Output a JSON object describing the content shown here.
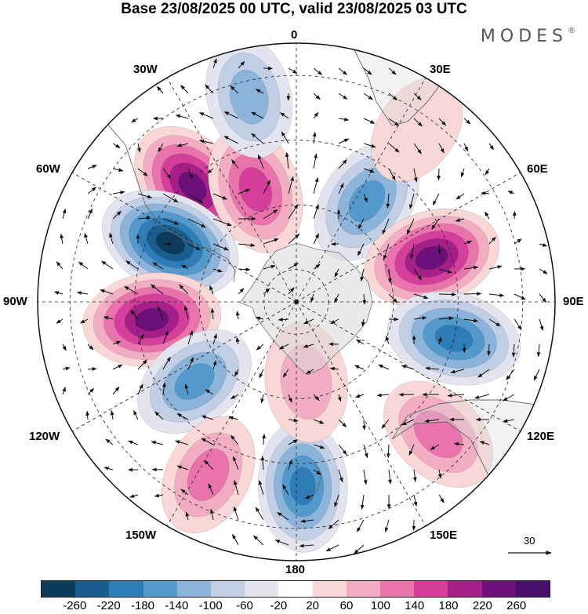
{
  "title": "Base 23/08/2025 00 UTC, valid 23/08/2025 03 UTC",
  "brand": "MODES",
  "brand_mark": "®",
  "longitude_labels": {
    "top": "0",
    "bottom": "180",
    "left": "90W",
    "right": "90E",
    "upper_left_30": "30W",
    "upper_right_30": "30E",
    "upper_left_60": "60W",
    "upper_right_60": "60E",
    "lower_left_120": "120W",
    "lower_right_120": "120E",
    "lower_left_150": "150W",
    "lower_right_150": "150E"
  },
  "vector_scale": {
    "label": "30"
  },
  "colorbar": {
    "ticks": [
      "-260",
      "-220",
      "-180",
      "-140",
      "-100",
      "-60",
      "-20",
      "20",
      "60",
      "100",
      "140",
      "180",
      "220",
      "260"
    ],
    "colors": [
      "#0e3a5c",
      "#1a5e8f",
      "#2f7db8",
      "#5499cc",
      "#8cb4db",
      "#c0cfe6",
      "#e4e4f1",
      "#ffffff",
      "#fad7d7",
      "#f3adc3",
      "#e973ac",
      "#d33f9a",
      "#a51f88",
      "#6e1079",
      "#4a0e6b"
    ]
  },
  "anomaly_features": [
    {
      "name": "positive-60W-40S",
      "lon": -42,
      "lat": -42,
      "value": 230
    },
    {
      "name": "positive-25W-55S",
      "lon": -20,
      "lat": -53,
      "value": 170
    },
    {
      "name": "negative-65W-48S",
      "lon": -65,
      "lat": -47,
      "value": -270
    },
    {
      "name": "positive-100W-45S",
      "lon": -97,
      "lat": -45,
      "value": 230
    },
    {
      "name": "negative-125W-48S",
      "lon": -128,
      "lat": -50,
      "value": -140
    },
    {
      "name": "positive-155W-30S",
      "lon": -153,
      "lat": -30,
      "value": 110
    },
    {
      "name": "negative-178W-35S",
      "lon": 178,
      "lat": -33,
      "value": -180
    },
    {
      "name": "negative-20W-28S",
      "lon": -13,
      "lat": -25,
      "value": -110
    },
    {
      "name": "negative-35E-50S",
      "lon": 35,
      "lat": -52,
      "value": -170
    },
    {
      "name": "positive-70E-45S",
      "lon": 72,
      "lat": -46,
      "value": 230
    },
    {
      "name": "negative-103E-40S",
      "lon": 103,
      "lat": -40,
      "value": -200
    },
    {
      "name": "positive-132E-33S",
      "lon": 133,
      "lat": -30,
      "value": 130
    },
    {
      "name": "positive-170E-65S",
      "lon": 173,
      "lat": -65,
      "value": 90
    },
    {
      "name": "positive-35E-30S",
      "lon": 35,
      "lat": -25,
      "value": 40
    }
  ]
}
